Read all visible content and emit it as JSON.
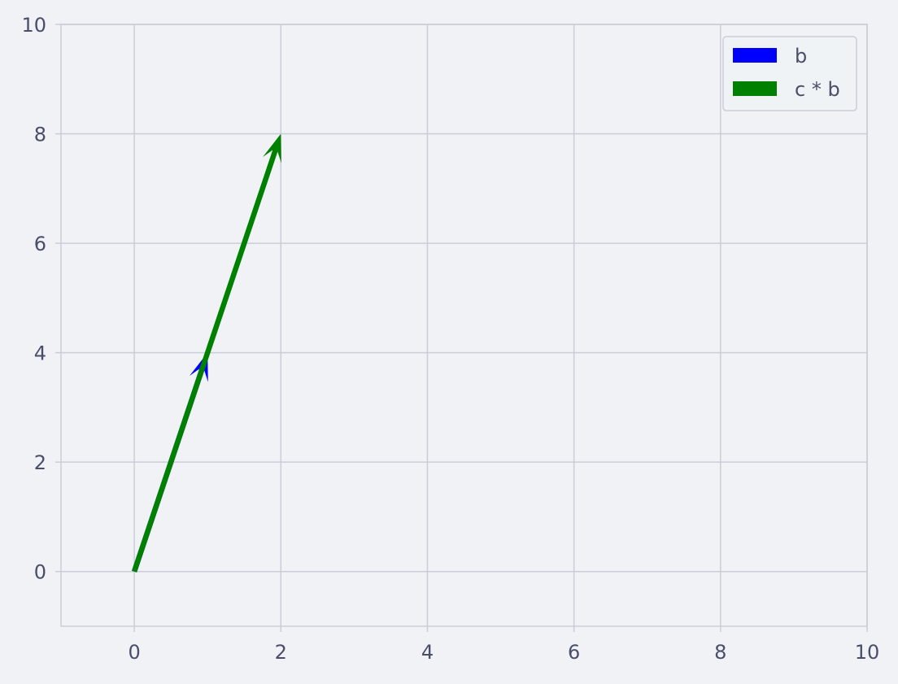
{
  "chart_data": {
    "type": "quiver",
    "title": "",
    "xlabel": "",
    "ylabel": "",
    "xlim": [
      -1,
      10
    ],
    "ylim": [
      -1,
      10
    ],
    "xticks": [
      0,
      2,
      4,
      6,
      8,
      10
    ],
    "yticks": [
      0,
      2,
      4,
      6,
      8,
      10
    ],
    "grid": true,
    "legend_position": "top-right",
    "vectors": [
      {
        "name": "b",
        "origin": [
          0,
          0
        ],
        "components": [
          1,
          4
        ],
        "color": "#0000ff"
      },
      {
        "name": "c * b",
        "origin": [
          0,
          0
        ],
        "components": [
          2,
          8
        ],
        "color": "#008000"
      }
    ]
  },
  "colors": {
    "background": "#f0f2f6",
    "grid": "#ccccd8",
    "text": "#4a4e6a"
  }
}
